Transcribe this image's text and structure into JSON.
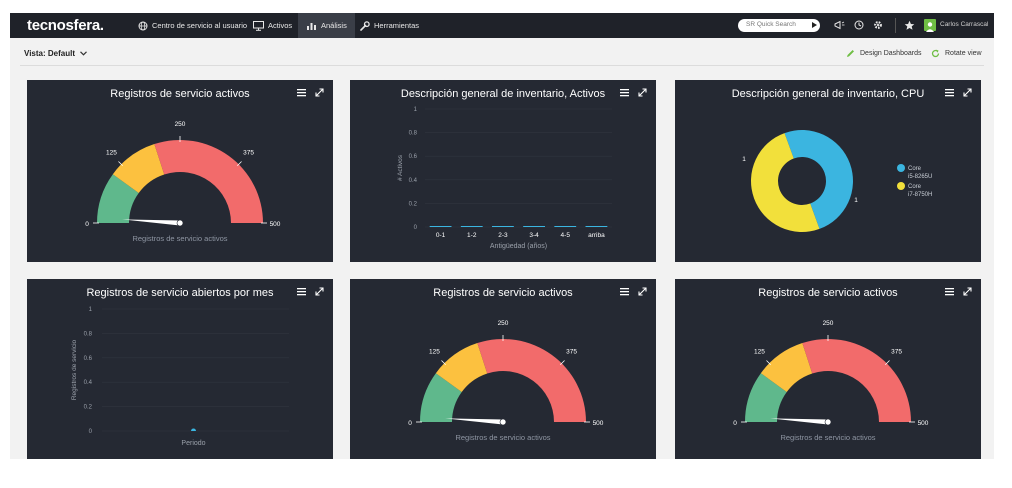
{
  "nav": {
    "logo": "tecnosfera.",
    "items": [
      {
        "label": "Centro de servicio al usuario",
        "icon": "globe-icon"
      },
      {
        "label": "Activos",
        "icon": "monitor-icon"
      },
      {
        "label": "Análisis",
        "icon": "bar-chart-icon",
        "active": true
      },
      {
        "label": "Herramientas",
        "icon": "wrench-icon"
      }
    ],
    "search_placeholder": "SR Quick Search",
    "user_name": "Carlos Carrascal"
  },
  "subbar": {
    "view_label": "Vista: Default",
    "design_label": "Design Dashboards",
    "rotate_label": "Rotate view"
  },
  "colors": {
    "accent_green": "#6fbe44",
    "gauge_green": "#5fb88c",
    "gauge_yellow": "#fcc13f",
    "gauge_red": "#f26b6b",
    "donut_blue": "#3bb5e0",
    "donut_yellow": "#f2e03b",
    "panel": "#252933"
  },
  "widgets": {
    "w1": {
      "title": "Registros de servicio activos"
    },
    "w2": {
      "title": "Descripción general de inventario, Activos"
    },
    "w3": {
      "title": "Descripción general de inventario, CPU"
    },
    "w4": {
      "title": "Registros de servicio abiertos por mes"
    },
    "w5": {
      "title": "Registros de servicio activos"
    },
    "w6": {
      "title": "Registros de servicio activos"
    }
  },
  "chart_data": [
    {
      "type": "gauge",
      "id": "w1",
      "ticks": [
        0,
        125,
        250,
        375,
        500
      ],
      "bands": [
        {
          "from": 0,
          "to": 100,
          "color": "#5fb88c"
        },
        {
          "from": 100,
          "to": 200,
          "color": "#fcc13f"
        },
        {
          "from": 200,
          "to": 500,
          "color": "#f26b6b"
        }
      ],
      "value": 10,
      "label": "Registros de servicio activos"
    },
    {
      "type": "bar",
      "id": "w2",
      "categories": [
        "0-1",
        "1-2",
        "2-3",
        "3-4",
        "4-5",
        "arriba"
      ],
      "values": [
        0,
        0,
        0,
        0,
        0,
        0
      ],
      "yticks": [
        "0",
        "0.2",
        "0.4",
        "0.6",
        "0.8",
        "1"
      ],
      "ylim": [
        0,
        1
      ],
      "xlabel": "Antigüedad (años)",
      "ylabel": "# Activos"
    },
    {
      "type": "pie",
      "id": "w3",
      "slices": [
        {
          "name": "Core i5-8265U",
          "value": 1,
          "color": "#3bb5e0"
        },
        {
          "name": "Core i7-8750H",
          "value": 1,
          "color": "#f2e03b"
        }
      ],
      "slice_labels": [
        "1",
        "1"
      ],
      "legend": [
        {
          "line1": "Core",
          "line2": "i5-8265U"
        },
        {
          "line1": "Core",
          "line2": "i7-8750H"
        }
      ]
    },
    {
      "type": "scatter",
      "id": "w4",
      "yticks": [
        "0",
        "0.2",
        "0.4",
        "0.6",
        "0.8",
        "1"
      ],
      "ylim": [
        0,
        1
      ],
      "points": [
        {
          "x": 0,
          "y": 0
        }
      ],
      "xlabel": "Periodo",
      "ylabel": "Registros de servicio"
    },
    {
      "type": "gauge",
      "id": "w5",
      "ticks": [
        0,
        125,
        250,
        375,
        500
      ],
      "bands": [
        {
          "from": 0,
          "to": 100,
          "color": "#5fb88c"
        },
        {
          "from": 100,
          "to": 200,
          "color": "#fcc13f"
        },
        {
          "from": 200,
          "to": 500,
          "color": "#f26b6b"
        }
      ],
      "value": 10,
      "label": "Registros de servicio activos"
    },
    {
      "type": "gauge",
      "id": "w6",
      "ticks": [
        0,
        125,
        250,
        375,
        500
      ],
      "bands": [
        {
          "from": 0,
          "to": 100,
          "color": "#5fb88c"
        },
        {
          "from": 100,
          "to": 200,
          "color": "#fcc13f"
        },
        {
          "from": 200,
          "to": 500,
          "color": "#f26b6b"
        }
      ],
      "value": 10,
      "label": "Registros de servicio activos"
    }
  ]
}
